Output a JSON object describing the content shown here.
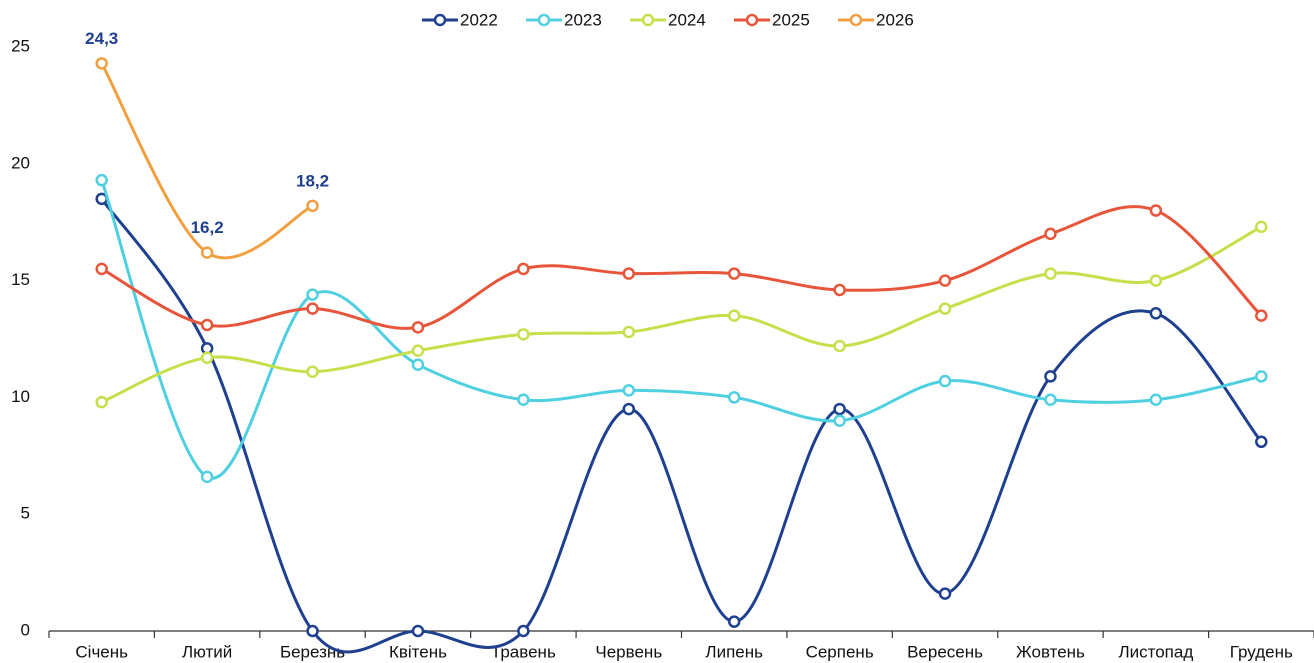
{
  "chart_data": {
    "type": "line",
    "categories": [
      "Січень",
      "Лютий",
      "Березнь",
      "Квітень",
      "Травень",
      "Червень",
      "Липень",
      "Серпень",
      "Вересень",
      "Жовтень",
      "Листопад",
      "Грудень"
    ],
    "series": [
      {
        "name": "2022",
        "color": "#1f3f8f",
        "values": [
          18.5,
          12.1,
          0,
          0,
          0,
          9.5,
          0.4,
          9.5,
          1.6,
          10.9,
          13.6,
          8.1
        ]
      },
      {
        "name": "2023",
        "color": "#4fd0e0",
        "values": [
          19.3,
          6.6,
          14.4,
          11.4,
          9.9,
          10.3,
          10.0,
          9.0,
          10.7,
          9.9,
          9.9,
          10.9
        ]
      },
      {
        "name": "2024",
        "color": "#c5e04a",
        "values": [
          9.8,
          11.7,
          11.1,
          12.0,
          12.7,
          12.8,
          13.5,
          12.2,
          13.8,
          15.3,
          15.0,
          17.3
        ]
      },
      {
        "name": "2025",
        "color": "#e8553a",
        "values": [
          15.5,
          13.1,
          13.8,
          13.0,
          15.5,
          15.3,
          15.3,
          14.6,
          15.0,
          17.0,
          18.0,
          13.5
        ]
      },
      {
        "name": "2026",
        "color": "#f0a040",
        "values": [
          24.3,
          16.2,
          18.2,
          null,
          null,
          null,
          null,
          null,
          null,
          null,
          null,
          null
        ],
        "value_labels": [
          "24,3",
          "16,2",
          "18,2",
          null,
          null,
          null,
          null,
          null,
          null,
          null,
          null,
          null
        ]
      }
    ],
    "value_label_color": "#1f3f8f",
    "ylim": [
      0,
      25
    ],
    "yticks": [
      0,
      5,
      10,
      15,
      20,
      25
    ],
    "grid": false,
    "smooth": true,
    "legend": "top"
  }
}
